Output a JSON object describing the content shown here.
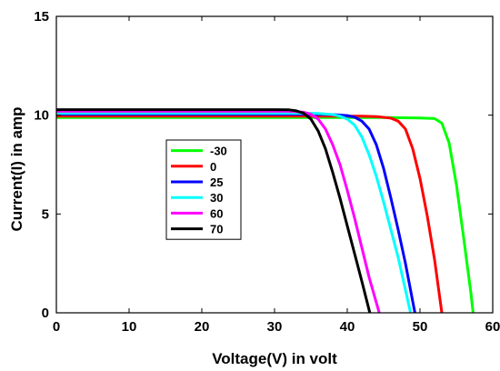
{
  "chart_data": {
    "type": "line",
    "xlabel": "Voltage(V) in volt",
    "ylabel": "Current(I) in amp",
    "xlim": [
      0,
      60
    ],
    "ylim": [
      0,
      15
    ],
    "xticks": [
      0,
      10,
      20,
      30,
      40,
      50,
      60
    ],
    "yticks": [
      0,
      5,
      10,
      15
    ],
    "grid": false,
    "legend_position": "center-left",
    "series": [
      {
        "name": "-30",
        "color": "#00ff00",
        "x": [
          0,
          10,
          20,
          30,
          40,
          45,
          50,
          52,
          53,
          54,
          55,
          56,
          57,
          57.3
        ],
        "y": [
          9.88,
          9.88,
          9.88,
          9.88,
          9.88,
          9.88,
          9.86,
          9.83,
          9.6,
          8.6,
          6.5,
          3.8,
          1.0,
          0
        ]
      },
      {
        "name": "0",
        "color": "#ff0000",
        "x": [
          0,
          10,
          20,
          30,
          40,
          42,
          44,
          46,
          47,
          48,
          49,
          50,
          51,
          52,
          53
        ],
        "y": [
          9.95,
          9.95,
          9.95,
          9.95,
          9.95,
          9.95,
          9.93,
          9.85,
          9.7,
          9.3,
          8.3,
          6.8,
          4.9,
          2.7,
          0
        ]
      },
      {
        "name": "25",
        "color": "#0000ff",
        "x": [
          0,
          10,
          20,
          30,
          36,
          38,
          40,
          41,
          42,
          43,
          44,
          45,
          46,
          47,
          48,
          49.3
        ],
        "y": [
          10.05,
          10.05,
          10.05,
          10.05,
          10.04,
          10.03,
          9.98,
          9.9,
          9.7,
          9.3,
          8.5,
          7.3,
          5.8,
          4.2,
          2.5,
          0
        ]
      },
      {
        "name": "30",
        "color": "#00ffff",
        "x": [
          0,
          10,
          20,
          30,
          34,
          36,
          38,
          39,
          40,
          41,
          42,
          43,
          44,
          45,
          46,
          47,
          48.7
        ],
        "y": [
          10.1,
          10.1,
          10.1,
          10.1,
          10.1,
          10.09,
          10.03,
          9.95,
          9.8,
          9.5,
          8.9,
          8.0,
          6.9,
          5.6,
          4.2,
          2.8,
          0
        ]
      },
      {
        "name": "60",
        "color": "#ff00ff",
        "x": [
          0,
          10,
          20,
          30,
          32,
          34,
          35,
          36,
          37,
          38,
          39,
          40,
          41,
          42,
          43,
          44.4
        ],
        "y": [
          10.2,
          10.2,
          10.2,
          10.2,
          10.2,
          10.15,
          10.05,
          9.8,
          9.3,
          8.5,
          7.5,
          6.2,
          4.8,
          3.3,
          1.8,
          0
        ]
      },
      {
        "name": "70",
        "color": "#000000",
        "x": [
          0,
          10,
          20,
          30,
          32,
          33,
          34,
          35,
          36,
          37,
          38,
          39,
          40,
          41,
          42,
          43.1
        ],
        "y": [
          10.28,
          10.28,
          10.28,
          10.28,
          10.27,
          10.22,
          10.1,
          9.8,
          9.2,
          8.3,
          7.1,
          5.8,
          4.4,
          3.0,
          1.6,
          0
        ]
      }
    ]
  }
}
